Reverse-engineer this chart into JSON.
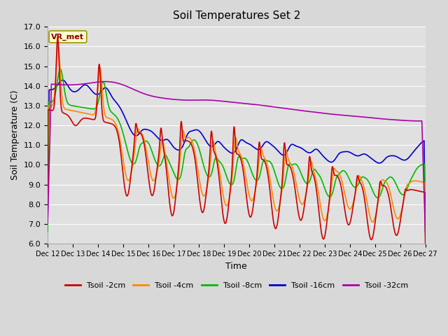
{
  "title": "Soil Temperatures Set 2",
  "xlabel": "Time",
  "ylabel": "Soil Temperature (C)",
  "ylim": [
    6.0,
    17.0
  ],
  "yticks": [
    6.0,
    7.0,
    8.0,
    9.0,
    10.0,
    11.0,
    12.0,
    13.0,
    14.0,
    15.0,
    16.0,
    17.0
  ],
  "xtick_labels": [
    "Dec 12",
    "Dec 13",
    "Dec 14",
    "Dec 15",
    "Dec 16",
    "Dec 17",
    "Dec 18",
    "Dec 19",
    "Dec 20",
    "Dec 21",
    "Dec 22",
    "Dec 23",
    "Dec 24",
    "Dec 25",
    "Dec 26",
    "Dec 27"
  ],
  "colors": {
    "Tsoil_2cm": "#cc0000",
    "Tsoil_4cm": "#ff8800",
    "Tsoil_8cm": "#00bb00",
    "Tsoil_16cm": "#0000cc",
    "Tsoil_32cm": "#aa00aa"
  },
  "legend_labels": [
    "Tsoil -2cm",
    "Tsoil -4cm",
    "Tsoil -8cm",
    "Tsoil -16cm",
    "Tsoil -32cm"
  ],
  "annotation_text": "VR_met",
  "annotation_color": "#8B0000",
  "bg_color": "#e8e8e8",
  "grid_color": "#ffffff",
  "line_width": 1.2,
  "n_points": 1500
}
